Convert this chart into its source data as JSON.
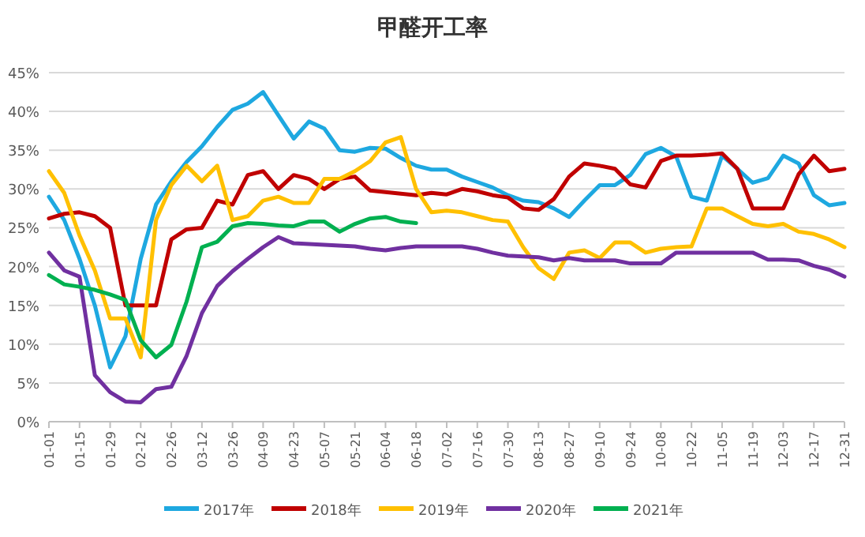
{
  "chart_data": {
    "type": "line",
    "title": "甲醛开工率",
    "categories": [
      "01-01",
      null,
      "01-15",
      null,
      "01-29",
      null,
      "02-12",
      null,
      "02-26",
      null,
      "03-12",
      null,
      "03-26",
      null,
      "04-09",
      null,
      "04-23",
      null,
      "05-07",
      null,
      "05-21",
      null,
      "06-04",
      null,
      "06-18",
      null,
      "07-02",
      null,
      "07-16",
      null,
      "07-30",
      null,
      "08-13",
      null,
      "08-27",
      null,
      "09-10",
      null,
      "09-24",
      null,
      "10-08",
      null,
      "10-22",
      null,
      "11-05",
      null,
      "11-19",
      null,
      "12-03",
      null,
      "12-17",
      null,
      "12-31"
    ],
    "series": [
      {
        "name": "2017年",
        "color": "#1ea8e0",
        "values": [
          29,
          26,
          21,
          15,
          7,
          11,
          21,
          28,
          31,
          33.5,
          35.5,
          38,
          40.2,
          41,
          42.5,
          39.5,
          36.5,
          38.7,
          37.8,
          35,
          34.8,
          35.3,
          35.2,
          34,
          33,
          32.5,
          32.5,
          31.6,
          30.9,
          30.2,
          29.2,
          28.5,
          28.3,
          27.5,
          26.4,
          28.5,
          30.5,
          30.5,
          31.8,
          34.5,
          35.3,
          34.2,
          29,
          28.5,
          34.3,
          32.6,
          30.8,
          31.4,
          34.3,
          33.3,
          29.2,
          27.9,
          28.2
        ]
      },
      {
        "name": "2018年",
        "color": "#c00000",
        "values": [
          26.2,
          26.8,
          27,
          26.5,
          25,
          15,
          15,
          15,
          23.5,
          24.8,
          25,
          28.5,
          28,
          31.8,
          32.3,
          30,
          31.8,
          31.3,
          30,
          31.3,
          31.6,
          29.8,
          29.6,
          29.4,
          29.2,
          29.5,
          29.3,
          30,
          29.7,
          29.2,
          28.9,
          27.5,
          27.3,
          28.7,
          31.6,
          33.3,
          33,
          32.6,
          30.6,
          30.2,
          33.6,
          34.3,
          34.3,
          34.4,
          34.6,
          32.6,
          27.5,
          27.5,
          27.5,
          31.9,
          34.3,
          32.3,
          32.6
        ]
      },
      {
        "name": "2019年",
        "color": "#ffc000",
        "values": [
          32.3,
          29.5,
          24,
          19.5,
          13.3,
          13.3,
          8.3,
          26,
          30.5,
          33,
          31,
          33,
          26,
          26.5,
          28.5,
          29,
          28.2,
          28.2,
          31.3,
          31.3,
          32.3,
          33.6,
          36,
          36.7,
          30,
          27,
          27.2,
          27,
          26.5,
          26,
          25.8,
          22.5,
          19.8,
          18.4,
          21.8,
          22.1,
          21.1,
          23.1,
          23.1,
          21.8,
          22.3,
          22.5,
          22.6,
          27.5,
          27.5,
          26.5,
          25.5,
          25.2,
          25.5,
          24.5,
          24.2,
          23.5,
          22.5
        ]
      },
      {
        "name": "2020年",
        "color": "#7030a0",
        "values": [
          21.8,
          19.5,
          18.7,
          6,
          3.8,
          2.6,
          2.5,
          4.2,
          4.5,
          8.5,
          14,
          17.5,
          19.4,
          21,
          22.5,
          23.8,
          23,
          22.9,
          22.8,
          22.7,
          22.6,
          22.3,
          22.1,
          22.4,
          22.6,
          22.6,
          22.6,
          22.6,
          22.3,
          21.8,
          21.4,
          21.3,
          21.2,
          20.8,
          21.1,
          20.8,
          20.8,
          20.8,
          20.4,
          20.4,
          20.4,
          21.8,
          21.8,
          21.8,
          21.8,
          21.8,
          21.8,
          20.9,
          20.9,
          20.8,
          20.1,
          19.6,
          18.7
        ]
      },
      {
        "name": "2021年",
        "color": "#00b050",
        "values": [
          18.9,
          17.7,
          17.4,
          17,
          16.4,
          15.7,
          10.5,
          8.3,
          9.9,
          15.5,
          22.5,
          23.2,
          25.2,
          25.6,
          25.5,
          25.3,
          25.2,
          25.8,
          25.8,
          24.5,
          25.5,
          26.2,
          26.4,
          25.8,
          25.6,
          null,
          null,
          null,
          null,
          null,
          null,
          null,
          null,
          null,
          null,
          null,
          null,
          null,
          null,
          null,
          null,
          null,
          null,
          null,
          null,
          null,
          null,
          null,
          null,
          null,
          null,
          null,
          null
        ]
      }
    ],
    "ylim": [
      0,
      45
    ],
    "yticks": [
      {
        "value": 0,
        "label": "0%"
      },
      {
        "value": 5,
        "label": "5%"
      },
      {
        "value": 10,
        "label": "10%"
      },
      {
        "value": 15,
        "label": "15%"
      },
      {
        "value": 20,
        "label": "20%"
      },
      {
        "value": 25,
        "label": "25%"
      },
      {
        "value": 30,
        "label": "30%"
      },
      {
        "value": 35,
        "label": "35%"
      },
      {
        "value": 40,
        "label": "40%"
      },
      {
        "value": 45,
        "label": "45%"
      }
    ],
    "grid": "y",
    "legend": "bottom"
  }
}
